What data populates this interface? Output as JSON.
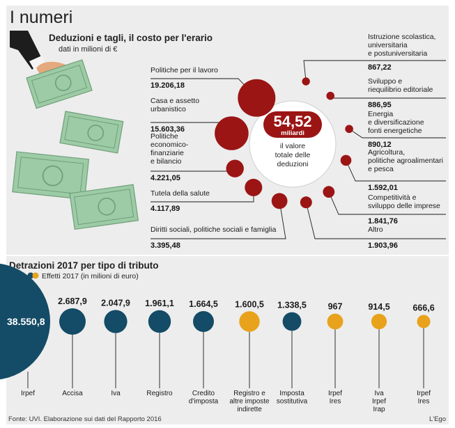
{
  "header": {
    "section_title": "I numeri",
    "subtitle": "Deduzioni e tagli, il costo per l'erario",
    "unit": "dati in milioni di €"
  },
  "center": {
    "total_value": "54,52",
    "total_unit": "miliardi",
    "caption": [
      "il valore",
      "totale delle",
      "deduzioni"
    ]
  },
  "colors": {
    "panel": "#ededed",
    "dark_red": "#9b1515",
    "navy": "#144b66",
    "orange": "#e8a21c",
    "money_green": "#8fc49a"
  },
  "footer": {
    "source": "Fonte: UVI. Elaborazione sui dati del Rapporto 2016",
    "credit": "L'Ego"
  },
  "chart_data": [
    {
      "type": "bubble",
      "title": "Deduzioni e tagli, il costo per l'erario",
      "unit": "dati in milioni di €",
      "total": "54,52 miliardi",
      "items": [
        {
          "label": [
            "Politiche per il lavoro"
          ],
          "display": "19.206,18",
          "value": 19206.18,
          "side": "left"
        },
        {
          "label": [
            "Casa e assetto",
            "urbanistico"
          ],
          "display": "15.603,36",
          "value": 15603.36,
          "side": "left"
        },
        {
          "label": [
            "Politiche",
            "economico-",
            "finanziarie",
            "e bilancio"
          ],
          "display": "4.221,05",
          "value": 4221.05,
          "side": "left"
        },
        {
          "label": [
            "Tutela della salute"
          ],
          "display": "4.117,89",
          "value": 4117.89,
          "side": "left"
        },
        {
          "label": [
            "Diritti sociali, politiche sociali e famiglia"
          ],
          "display": "3.395,48",
          "value": 3395.48,
          "side": "left"
        },
        {
          "label": [
            "Altro"
          ],
          "display": "1.903,96",
          "value": 1903.96,
          "side": "right"
        },
        {
          "label": [
            "Competitività e",
            "sviluppo delle imprese"
          ],
          "display": "1.841,76",
          "value": 1841.76,
          "side": "right"
        },
        {
          "label": [
            "Agricoltura,",
            "politiche agroalimentari",
            "e pesca"
          ],
          "display": "1.592,01",
          "value": 1592.01,
          "side": "right"
        },
        {
          "label": [
            "Energia",
            "e diversificazione",
            "fonti energetiche"
          ],
          "display": "890,12",
          "value": 890.12,
          "side": "right"
        },
        {
          "label": [
            "Sviluppo e",
            "riequilibrio editoriale"
          ],
          "display": "886,95",
          "value": 886.95,
          "side": "right"
        },
        {
          "label": [
            "Istruzione scolastica,",
            "universitaria",
            "e postuniversitaria"
          ],
          "display": "867,22",
          "value": 867.22,
          "side": "right"
        }
      ]
    },
    {
      "type": "bubble",
      "title": "Detrazioni 2017 per tipo di tributo",
      "legend": "Effetti 2017 (in milioni di euro)",
      "items": [
        {
          "label": [
            "Irpef"
          ],
          "display": "38.550,8",
          "value": 38550.8,
          "color": "navy"
        },
        {
          "label": [
            "Accisa"
          ],
          "display": "2.687,9",
          "value": 2687.9,
          "color": "navy"
        },
        {
          "label": [
            "Iva"
          ],
          "display": "2.047,9",
          "value": 2047.9,
          "color": "navy"
        },
        {
          "label": [
            "Registro"
          ],
          "display": "1.961,1",
          "value": 1961.1,
          "color": "navy"
        },
        {
          "label": [
            "Credito",
            "d'imposta"
          ],
          "display": "1.664,5",
          "value": 1664.5,
          "color": "navy"
        },
        {
          "label": [
            "Registro e",
            "altre imposte",
            "indirette"
          ],
          "display": "1.600,5",
          "value": 1600.5,
          "color": "orange"
        },
        {
          "label": [
            "Imposta",
            "sostitutiva"
          ],
          "display": "1.338,5",
          "value": 1338.5,
          "color": "navy"
        },
        {
          "label": [
            "Irpef",
            "Ires"
          ],
          "display": "967",
          "value": 967,
          "color": "orange"
        },
        {
          "label": [
            "Iva",
            "Irpef",
            "Irap"
          ],
          "display": "914,5",
          "value": 914.5,
          "color": "orange"
        },
        {
          "label": [
            "Irpef",
            "Ires"
          ],
          "display": "666,6",
          "value": 666.6,
          "color": "orange"
        }
      ]
    }
  ]
}
